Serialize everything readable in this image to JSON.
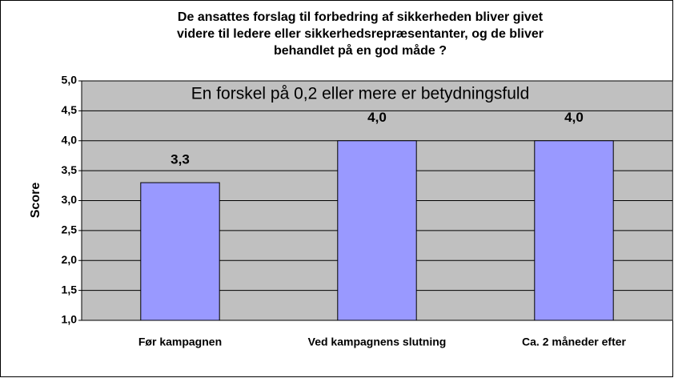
{
  "chart_data": {
    "type": "bar",
    "title": [
      "De ansattes forslag til forbedring af sikkerheden bliver givet",
      "videre til ledere eller sikkerhedsrepræsentanter, og de bliver",
      "behandlet på en god måde ?"
    ],
    "annotation": "En forskel på 0,2 eller mere er betydningsfuld",
    "y_label": "Score",
    "categories": [
      "Før kampagnen",
      "Ved kampagnens slutning",
      "Ca. 2 måneder efter"
    ],
    "values": [
      3.3,
      4.0,
      4.0
    ],
    "value_labels": [
      "3,3",
      "4,0",
      "4,0"
    ],
    "color": "#9999ff",
    "ylim": [
      1,
      5
    ],
    "yticks": [
      {
        "value": 1,
        "label": "1,0"
      },
      {
        "value": 1.5,
        "label": "1,5"
      },
      {
        "value": 2,
        "label": "2,0"
      },
      {
        "value": 2.5,
        "label": "2,5"
      },
      {
        "value": 3,
        "label": "3,0"
      },
      {
        "value": 3.5,
        "label": "3,5"
      },
      {
        "value": 4,
        "label": "4,0"
      },
      {
        "value": 4.5,
        "label": "4,5"
      },
      {
        "value": 5,
        "label": "5,0"
      }
    ],
    "grid": true
  }
}
